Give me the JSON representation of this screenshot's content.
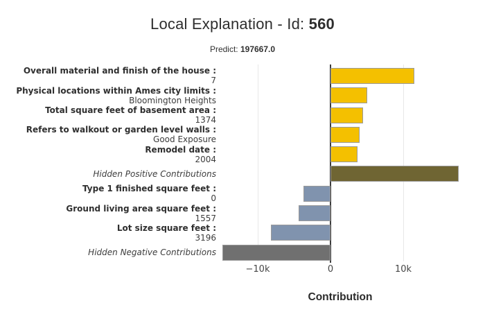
{
  "header": {
    "title_prefix": "Local Explanation - Id: ",
    "title_id": "560",
    "predict_label": "Predict: ",
    "predict_value": "197667.0"
  },
  "axis": {
    "xlabel": "Contribution",
    "tick_labels": [
      "−10k",
      "0",
      "10k"
    ],
    "tick_values": [
      -10000,
      0,
      10000
    ]
  },
  "colors": {
    "positive": "#f4c000",
    "negative": "#8093ae",
    "hidden_positive": "#6f6533",
    "hidden_negative": "#707070",
    "bar_border": "#9a9a9a",
    "zero_line": "#3d3d3d",
    "grid": "#e7e7e7"
  },
  "chart_data": {
    "type": "bar",
    "orientation": "horizontal",
    "title": "Local Explanation - Id: 560",
    "subtitle": "Predict: 197667.0",
    "xlabel": "Contribution",
    "xlim": [
      -14900,
      17700
    ],
    "x_ticks": [
      -10000,
      0,
      10000
    ],
    "grid": true,
    "bars": [
      {
        "feature": "Overall material and finish of the house :",
        "value": "7",
        "contribution": 11500,
        "kind": "positive"
      },
      {
        "feature": "Physical locations within Ames city limits :",
        "value": "Bloomington Heights",
        "contribution": 5000,
        "kind": "positive"
      },
      {
        "feature": "Total square feet of basement area :",
        "value": "1374",
        "contribution": 4500,
        "kind": "positive"
      },
      {
        "feature": "Refers to walkout or garden level walls :",
        "value": "Good Exposure",
        "contribution": 4000,
        "kind": "positive"
      },
      {
        "feature": "Remodel date :",
        "value": "2004",
        "contribution": 3700,
        "kind": "positive"
      },
      {
        "feature": "Hidden Positive Contributions",
        "value": "",
        "contribution": 17600,
        "kind": "hidden_positive"
      },
      {
        "feature": "Type 1 finished square feet :",
        "value": "0",
        "contribution": -3700,
        "kind": "negative"
      },
      {
        "feature": "Ground living area square feet :",
        "value": "1557",
        "contribution": -4400,
        "kind": "negative"
      },
      {
        "feature": "Lot size square feet :",
        "value": "3196",
        "contribution": -8200,
        "kind": "negative"
      },
      {
        "feature": "Hidden Negative Contributions",
        "value": "",
        "contribution": -14900,
        "kind": "hidden_negative"
      }
    ]
  }
}
